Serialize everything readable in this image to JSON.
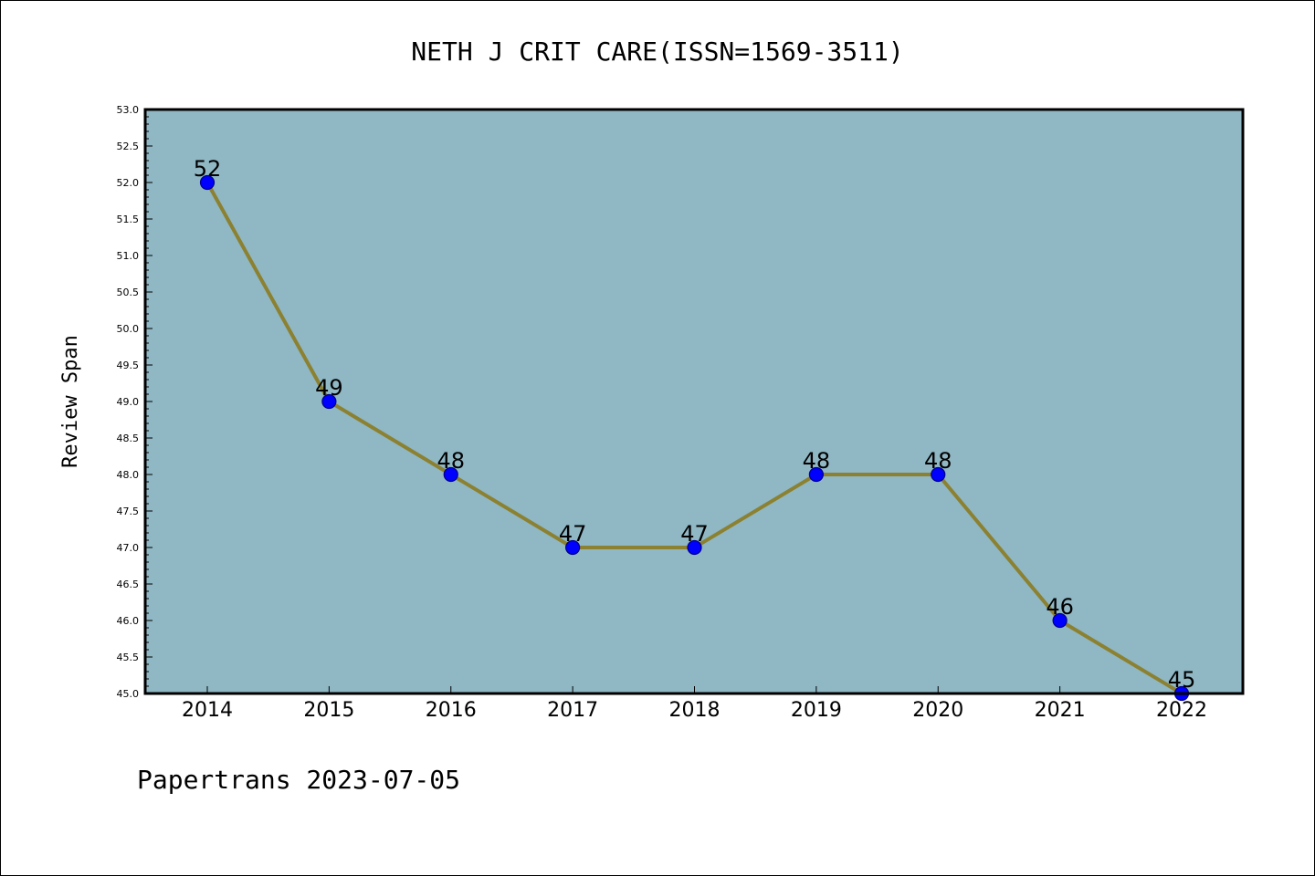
{
  "chart_data": {
    "type": "line",
    "title": "NETH J CRIT CARE(ISSN=1569-3511)",
    "ylabel": "Review Span",
    "xlabel": "",
    "categories": [
      "2014",
      "2015",
      "2016",
      "2017",
      "2018",
      "2019",
      "2020",
      "2021",
      "2022"
    ],
    "values": [
      52,
      49,
      48,
      47,
      47,
      48,
      48,
      46,
      45
    ],
    "data_labels": [
      "52",
      "49",
      "48",
      "47",
      "47",
      "48",
      "48",
      "46",
      "45"
    ],
    "ylim": [
      45.0,
      53.0
    ],
    "yticks": [
      "45.0",
      "45.5",
      "46.0",
      "46.5",
      "47.0",
      "47.5",
      "48.0",
      "48.5",
      "49.0",
      "49.5",
      "50.0",
      "50.5",
      "51.0",
      "51.5",
      "52.0",
      "52.5",
      "53.0"
    ],
    "grid": false,
    "legend": "none"
  },
  "footer": "Papertrans 2023-07-05",
  "colors": {
    "plot_background": "#8fb7c4",
    "line": "#8b8130",
    "marker_fill": "#0000ff",
    "marker_edge": "#00008b",
    "axis": "#000000"
  }
}
